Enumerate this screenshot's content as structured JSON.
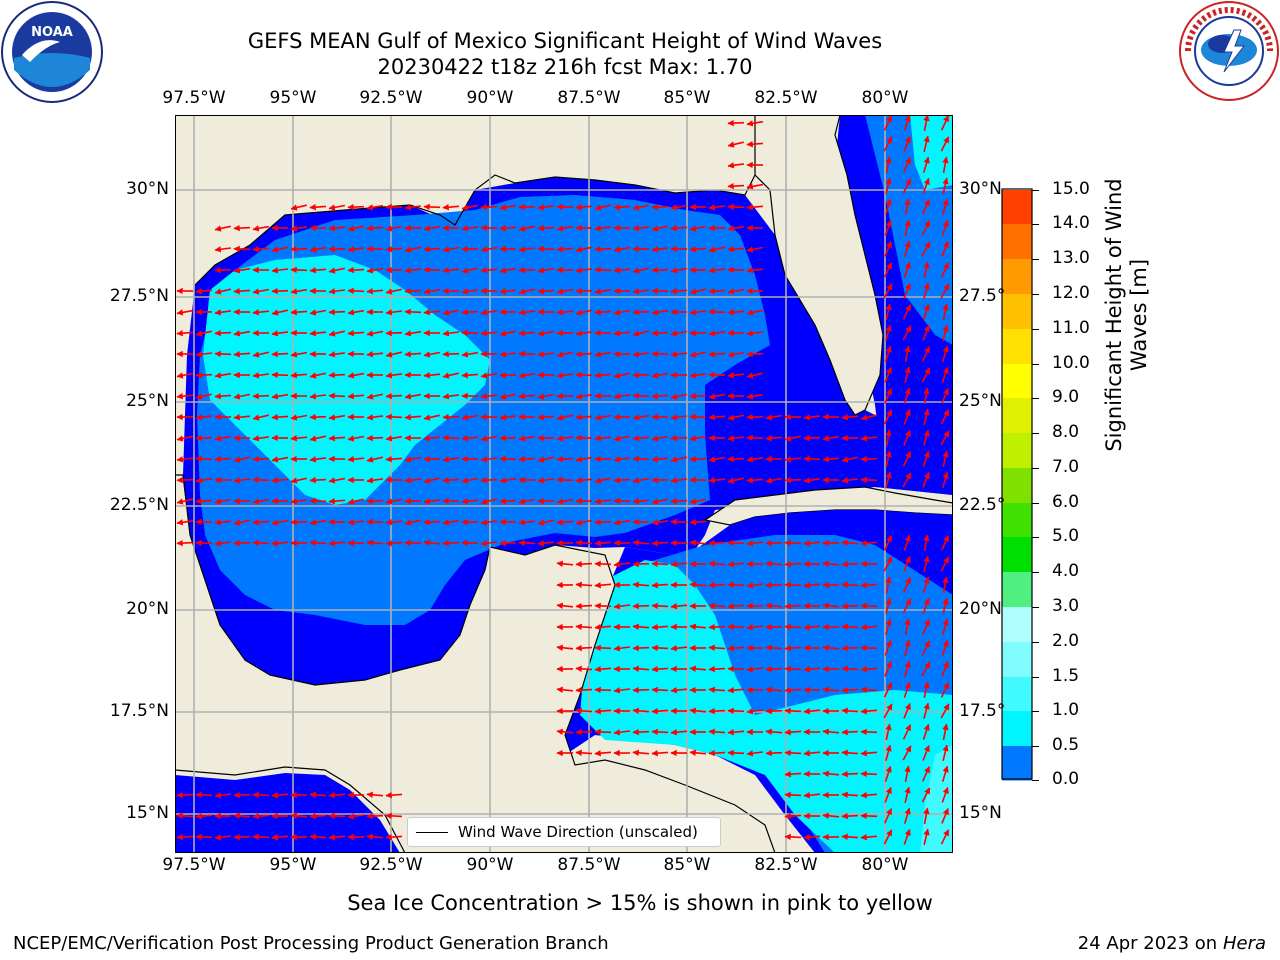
{
  "title": {
    "line1": "GEFS MEAN Gulf of Mexico Significant Height of Wind Waves",
    "line2": "20230422 t18z 216h fcst   Max: 1.70"
  },
  "logos": {
    "left": "NOAA",
    "left_ring_text": "NATIONAL OCEANIC AND ATMOSPHERIC ADMINISTRATION · U.S. DEPARTMENT OF COMMERCE",
    "right_ring_text": "NATIONAL WEATHER SERVICE"
  },
  "axes": {
    "lon_labels": [
      "97.5°W",
      "95°W",
      "92.5°W",
      "90°W",
      "87.5°W",
      "85°W",
      "82.5°W",
      "80°W"
    ],
    "lat_labels_left": [
      "30°N",
      "27.5°N",
      "25°N",
      "22.5°N",
      "20°N",
      "17.5°N",
      "15°N"
    ],
    "lat_labels_right": [
      "30°N",
      "27.5°",
      "25°N",
      "22.5°",
      "20°N",
      "17.5°",
      "15°N"
    ]
  },
  "legend": {
    "label": "Wind Wave Direction (unscaled)"
  },
  "colorbar": {
    "label_line1": "Significant Height of Wind",
    "label_line2": "Waves [m]",
    "ticks": [
      "15.0",
      "14.0",
      "13.0",
      "12.0",
      "11.0",
      "10.0",
      "9.0",
      "8.0",
      "7.0",
      "6.0",
      "5.0",
      "4.0",
      "3.0",
      "2.0",
      "1.5",
      "1.0",
      "0.5",
      "0.0"
    ],
    "colors": [
      "#0000ff",
      "#0078ff",
      "#00f5ff",
      "#40faff",
      "#80fcff",
      "#b0ffff",
      "#50f080",
      "#00e000",
      "#40e000",
      "#80e000",
      "#c0f000",
      "#e0f000",
      "#ffff00",
      "#ffe000",
      "#ffc000",
      "#ff9a00",
      "#ff7000",
      "#ff4000",
      "#ff0000"
    ]
  },
  "colors": {
    "land": "#efecdc",
    "band_0_0_5": "#0000ff",
    "band_0_5_1_0": "#0078ff",
    "band_1_0_1_5": "#00f5ff",
    "band_1_5_2_0": "#40faff",
    "arrow": "#ff0000",
    "grid": "#b0b0b0"
  },
  "note": "Sea Ice Concentration > 15% is shown in pink to yellow",
  "footer": {
    "left": "NCEP/EMC/Verification Post Processing Product Generation Branch",
    "right_date": "24 Apr 2023 on ",
    "right_machine": "Hera"
  }
}
